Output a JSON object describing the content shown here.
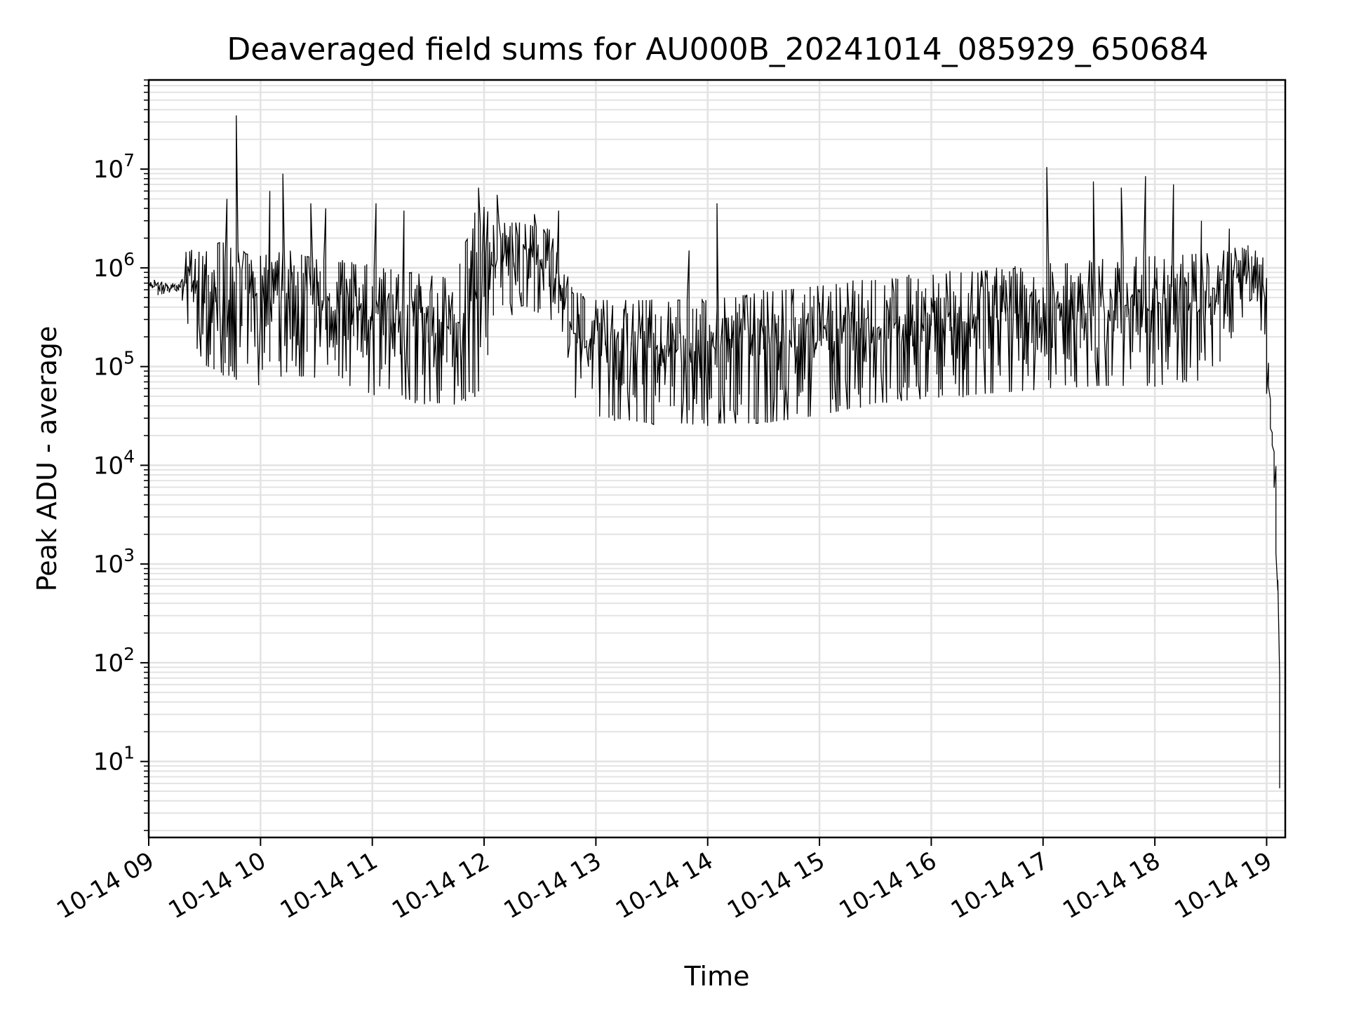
{
  "chart_data": {
    "type": "line",
    "title": "Deaveraged field sums for AU000B_20241014_085929_650684",
    "xlabel": "Time",
    "ylabel": "Peak ADU - average",
    "yscale": "log",
    "ylim": [
      1.7,
      80000000
    ],
    "xlim": [
      "2024-10-14 09:00",
      "2024-10-14 19:10"
    ],
    "grid": true,
    "line_color": "#000000",
    "grid_color": "#e3e3e3",
    "x_ticks": [
      {
        "time": "2024-10-14 09:00",
        "label": "10-14 09"
      },
      {
        "time": "2024-10-14 10:00",
        "label": "10-14 10"
      },
      {
        "time": "2024-10-14 11:00",
        "label": "10-14 11"
      },
      {
        "time": "2024-10-14 12:00",
        "label": "10-14 12"
      },
      {
        "time": "2024-10-14 13:00",
        "label": "10-14 13"
      },
      {
        "time": "2024-10-14 14:00",
        "label": "10-14 14"
      },
      {
        "time": "2024-10-14 15:00",
        "label": "10-14 15"
      },
      {
        "time": "2024-10-14 16:00",
        "label": "10-14 16"
      },
      {
        "time": "2024-10-14 17:00",
        "label": "10-14 17"
      },
      {
        "time": "2024-10-14 18:00",
        "label": "10-14 18"
      },
      {
        "time": "2024-10-14 19:00",
        "label": "10-14 19"
      }
    ],
    "y_ticks": [
      {
        "value": 10,
        "base": "10",
        "exp": "1"
      },
      {
        "value": 100,
        "base": "10",
        "exp": "2"
      },
      {
        "value": 1000,
        "base": "10",
        "exp": "3"
      },
      {
        "value": 10000,
        "base": "10",
        "exp": "4"
      },
      {
        "value": 100000,
        "base": "10",
        "exp": "5"
      },
      {
        "value": 1000000,
        "base": "10",
        "exp": "6"
      },
      {
        "value": 10000000,
        "base": "10",
        "exp": "7"
      }
    ],
    "series": [
      {
        "x": [
          "2024-10-14 09:00",
          "2024-10-14 09:10",
          "2024-10-14 09:18",
          "2024-10-14 09:20",
          "2024-10-14 09:30",
          "2024-10-14 09:40",
          "2024-10-14 09:50",
          "2024-10-14 10:00",
          "2024-10-14 10:15",
          "2024-10-14 10:30",
          "2024-10-14 10:45",
          "2024-10-14 11:00",
          "2024-10-14 11:15",
          "2024-10-14 11:30",
          "2024-10-14 11:45",
          "2024-10-14 11:58",
          "2024-10-14 12:05",
          "2024-10-14 12:20",
          "2024-10-14 12:35",
          "2024-10-14 12:45",
          "2024-10-14 12:48",
          "2024-10-14 13:00",
          "2024-10-14 13:30",
          "2024-10-14 14:00",
          "2024-10-14 14:30",
          "2024-10-14 15:00",
          "2024-10-14 15:30",
          "2024-10-14 16:00",
          "2024-10-14 16:30",
          "2024-10-14 17:00",
          "2024-10-14 17:30",
          "2024-10-14 18:00",
          "2024-10-14 18:30",
          "2024-10-14 18:55",
          "2024-10-14 19:00",
          "2024-10-14 19:02",
          "2024-10-14 19:04",
          "2024-10-14 19:06",
          "2024-10-14 19:08"
        ],
        "low": [
          500000,
          550000,
          600000,
          300000,
          100000,
          80000,
          70000,
          60000,
          80000,
          70000,
          60000,
          50000,
          45000,
          40000,
          40000,
          50000,
          200000,
          400000,
          300000,
          200000,
          30000,
          30000,
          25000,
          25000,
          25000,
          30000,
          40000,
          45000,
          50000,
          55000,
          60000,
          60000,
          70000,
          600000,
          100000,
          20000,
          12000,
          1000,
          4
        ],
        "high": [
          800000,
          700000,
          700000,
          1600000,
          1500000,
          2000000,
          1500000,
          1400000,
          1600000,
          1300000,
          1200000,
          1100000,
          1000000,
          900000,
          800000,
          6000000,
          3000000,
          3000000,
          2500000,
          1000000,
          600000,
          500000,
          500000,
          500000,
          600000,
          700000,
          800000,
          900000,
          1000000,
          1100000,
          1300000,
          1400000,
          1500000,
          1800000,
          1200000,
          50000,
          15000,
          10000,
          4
        ],
        "spikes": [
          {
            "x": "2024-10-14 09:42",
            "y": 5000000
          },
          {
            "x": "2024-10-14 09:48",
            "y": 35000000
          },
          {
            "x": "2024-10-14 10:05",
            "y": 6000000
          },
          {
            "x": "2024-10-14 10:13",
            "y": 9000000
          },
          {
            "x": "2024-10-14 10:28",
            "y": 4500000
          },
          {
            "x": "2024-10-14 10:35",
            "y": 4000000
          },
          {
            "x": "2024-10-14 11:02",
            "y": 4500000
          },
          {
            "x": "2024-10-14 11:17",
            "y": 3800000
          },
          {
            "x": "2024-10-14 11:58",
            "y": 6500000
          },
          {
            "x": "2024-10-14 12:08",
            "y": 5500000
          },
          {
            "x": "2024-10-14 12:28",
            "y": 3500000
          },
          {
            "x": "2024-10-14 12:40",
            "y": 3800000
          },
          {
            "x": "2024-10-14 13:50",
            "y": 1500000
          },
          {
            "x": "2024-10-14 14:06",
            "y": 4500000
          },
          {
            "x": "2024-10-14 17:03",
            "y": 10500000
          },
          {
            "x": "2024-10-14 17:28",
            "y": 7500000
          },
          {
            "x": "2024-10-14 17:43",
            "y": 6500000
          },
          {
            "x": "2024-10-14 17:55",
            "y": 8500000
          },
          {
            "x": "2024-10-14 18:10",
            "y": 7000000
          },
          {
            "x": "2024-10-14 18:25",
            "y": 3000000
          },
          {
            "x": "2024-10-14 18:40",
            "y": 2500000
          }
        ]
      }
    ]
  }
}
